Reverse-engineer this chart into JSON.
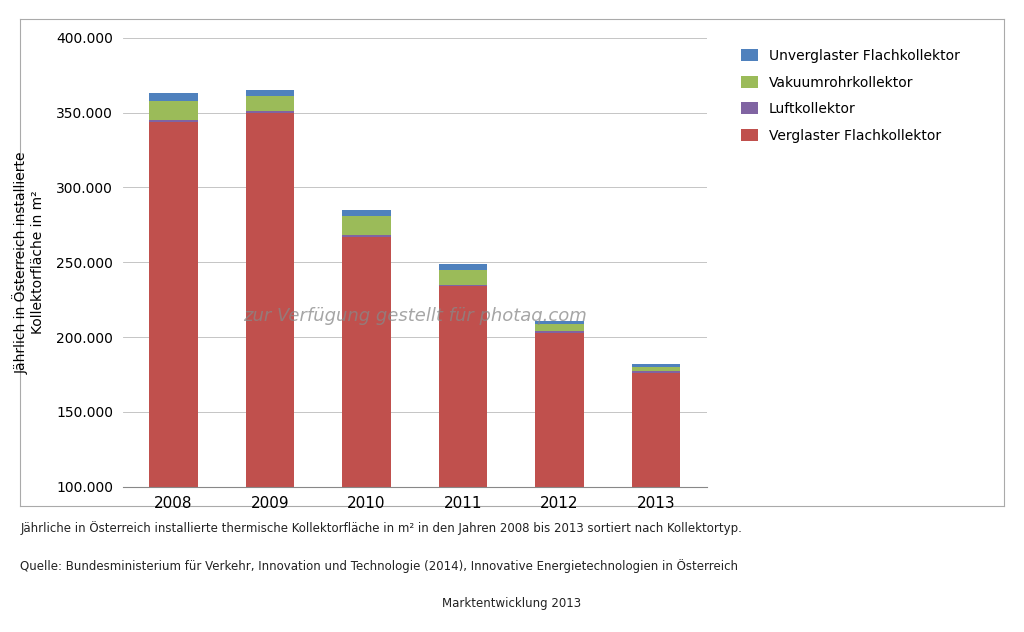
{
  "years": [
    "2008",
    "2009",
    "2010",
    "2011",
    "2012",
    "2013"
  ],
  "verglaster_flachkollektor": [
    344000,
    350000,
    267000,
    234000,
    203000,
    176000
  ],
  "luftkollektor": [
    1000,
    1000,
    1000,
    1000,
    1000,
    1000
  ],
  "vakuumrohrkollektor": [
    13000,
    10000,
    13000,
    10000,
    5000,
    3000
  ],
  "unverglaster_flachkollektor": [
    5000,
    4000,
    4000,
    4000,
    2000,
    2000
  ],
  "colors": {
    "verglaster_flachkollektor": "#C0504D",
    "luftkollektor": "#8064A2",
    "vakuumrohrkollektor": "#9BBB59",
    "unverglaster_flachkollektor": "#4F81BD"
  },
  "legend_labels": {
    "unverglaster_flachkollektor": "Unverglaster Flachkollektor",
    "vakuumrohrkollektor": "Vakuumrohrkollektor",
    "luftkollektor": "Luftkollektor",
    "verglaster_flachkollektor": "Verglaster Flachkollektor"
  },
  "ylabel": "Jährlich in Österreich installierte\nKollektorfläche in m²",
  "ylim_min": 100000,
  "ylim_max": 400000,
  "yticks": [
    100000,
    150000,
    200000,
    250000,
    300000,
    350000,
    400000
  ],
  "caption_line1": "Jährliche in Österreich installierte thermische Kollektorfläche in m² in den Jahren 2008 bis 2013 sortiert nach Kollektortyp.",
  "caption_line2": "Quelle: Bundesministerium für Verkehr, Innovation und Technologie (2014), Innovative Energietechnologien in Österreich",
  "caption_line3": "Marktentwicklung 2013",
  "watermark": "zur Verfügung gestellt für photaq.com",
  "background_color": "#FFFFFF",
  "plot_bg_color": "#FFFFFF",
  "box_color": "#CCCCCC"
}
